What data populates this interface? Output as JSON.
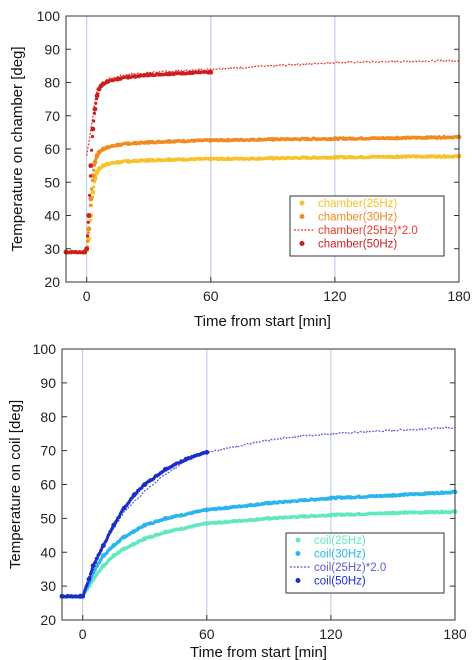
{
  "chart_data": [
    {
      "type": "scatter",
      "xlabel": "Time from start [min]",
      "ylabel": "Temperature on chamber [deg]",
      "xlim": [
        -10,
        180
      ],
      "ylim": [
        20,
        100
      ],
      "xticks": [
        0,
        60,
        120,
        180
      ],
      "yticks": [
        20,
        30,
        40,
        50,
        60,
        70,
        80,
        90,
        100
      ],
      "grid": "vertical",
      "legend_position": "bottom-right",
      "series": [
        {
          "name": "chamber(25Hz)",
          "color": "#f7c22a",
          "style": "dots",
          "x": [
            -10,
            -1,
            0,
            1,
            2,
            3,
            4,
            5,
            6,
            8,
            10,
            15,
            20,
            30,
            40,
            60,
            90,
            120,
            150,
            180
          ],
          "y": [
            29,
            29,
            29.5,
            33,
            40,
            47,
            51,
            53,
            54,
            55,
            55.5,
            56,
            56.3,
            56.6,
            56.8,
            57,
            57.2,
            57.5,
            57.7,
            57.8
          ]
        },
        {
          "name": "chamber(30Hz)",
          "color": "#f28a22",
          "style": "dots",
          "x": [
            -10,
            -1,
            0,
            1,
            2,
            3,
            4,
            5,
            6,
            8,
            10,
            15,
            20,
            30,
            40,
            60,
            90,
            120,
            150,
            180
          ],
          "y": [
            29,
            29,
            30,
            36,
            45,
            52,
            56,
            58,
            59,
            60,
            60.5,
            61.2,
            61.6,
            62,
            62.3,
            62.6,
            62.9,
            63.1,
            63.3,
            63.6
          ]
        },
        {
          "name": "chamber(25Hz)*2.0",
          "color": "#e83a2a",
          "style": "dashed",
          "x": [
            0,
            5,
            10,
            20,
            30,
            60,
            90,
            120,
            150,
            180
          ],
          "y": [
            58,
            78,
            81,
            82.5,
            83,
            84,
            85,
            86,
            86.3,
            86.6
          ]
        },
        {
          "name": "chamber(50Hz)",
          "color": "#cc1f1f",
          "style": "dots",
          "x": [
            -10,
            -1,
            0,
            1,
            2,
            3,
            4,
            5,
            6,
            7,
            8,
            10,
            15,
            20,
            30,
            40,
            50,
            60
          ],
          "y": [
            29,
            29,
            30,
            40,
            55,
            66,
            72,
            76,
            78,
            79,
            79.6,
            80.3,
            81,
            81.6,
            82.3,
            82.6,
            82.9,
            83.1
          ]
        }
      ]
    },
    {
      "type": "scatter",
      "xlabel": "Time from start [min]",
      "ylabel": "Temperature on coil [deg]",
      "xlim": [
        -10,
        180
      ],
      "ylim": [
        20,
        100
      ],
      "xticks": [
        0,
        60,
        120,
        180
      ],
      "yticks": [
        20,
        30,
        40,
        50,
        60,
        70,
        80,
        90,
        100
      ],
      "grid": "vertical",
      "legend_position": "bottom-right",
      "series": [
        {
          "name": "coil(25Hz)",
          "color": "#62e8c0",
          "style": "dots",
          "x": [
            -10,
            -1,
            0,
            3,
            5,
            10,
            15,
            20,
            30,
            40,
            60,
            90,
            120,
            150,
            180
          ],
          "y": [
            27,
            27,
            27,
            30,
            32,
            36,
            39,
            41,
            44,
            46,
            48.5,
            50,
            51,
            51.6,
            52
          ]
        },
        {
          "name": "coil(30Hz)",
          "color": "#2ab4f0",
          "style": "dots",
          "x": [
            -10,
            -1,
            0,
            3,
            5,
            10,
            15,
            20,
            30,
            40,
            60,
            90,
            120,
            150,
            180
          ],
          "y": [
            27,
            27,
            27,
            31,
            34,
            39,
            42,
            44.5,
            48,
            50,
            52.5,
            54.5,
            56,
            56.8,
            57.8
          ]
        },
        {
          "name": "coil(25Hz)*2.0",
          "color": "#5a5ad8",
          "style": "dashed",
          "x": [
            0,
            10,
            20,
            30,
            40,
            50,
            60,
            80,
            100,
            120,
            150,
            180
          ],
          "y": [
            27,
            42,
            52,
            58,
            63,
            67,
            69.5,
            72,
            74,
            75,
            76,
            76.8
          ]
        },
        {
          "name": "coil(50Hz)",
          "color": "#1a2fc8",
          "style": "dots",
          "x": [
            -10,
            -1,
            0,
            3,
            5,
            10,
            15,
            20,
            25,
            30,
            40,
            50,
            60
          ],
          "y": [
            27,
            27,
            27,
            32,
            36,
            42,
            48,
            53,
            57,
            60,
            64.5,
            67.5,
            69.5
          ]
        }
      ]
    }
  ]
}
